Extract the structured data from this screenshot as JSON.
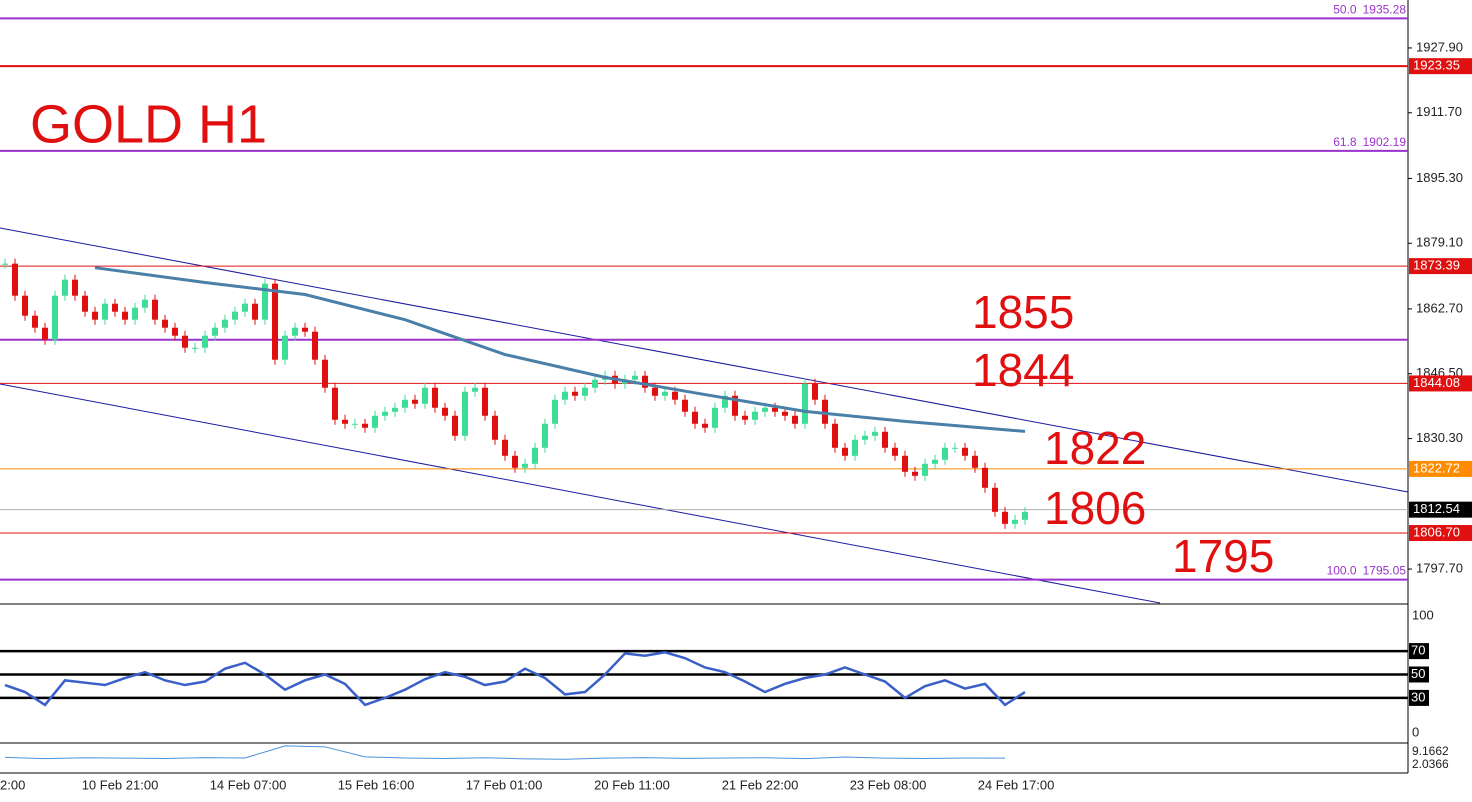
{
  "chart_data": [
    {
      "type": "candlestick",
      "title": "GOLD H1",
      "closes": [
        1874,
        1866,
        1861,
        1858,
        1855,
        1866,
        1870,
        1866,
        1862,
        1860,
        1864,
        1862,
        1860,
        1863,
        1865,
        1860,
        1858,
        1856,
        1853,
        1853,
        1856,
        1858,
        1860,
        1862,
        1864,
        1860,
        1869,
        1850,
        1856,
        1858,
        1857,
        1850,
        1843,
        1835,
        1834,
        1834,
        1833,
        1836,
        1837,
        1838,
        1840,
        1839,
        1843,
        1838,
        1836,
        1831,
        1842,
        1843,
        1836,
        1830,
        1826,
        1823,
        1824,
        1828,
        1834,
        1840,
        1842,
        1841,
        1843,
        1845,
        1846,
        1844,
        1845,
        1846,
        1843,
        1841,
        1842,
        1840,
        1837,
        1834,
        1833,
        1838,
        1841,
        1836,
        1835,
        1837,
        1838,
        1837,
        1836,
        1834,
        1844,
        1840,
        1834,
        1828,
        1826,
        1830,
        1831,
        1832,
        1828,
        1826,
        1822,
        1821,
        1824,
        1825,
        1828,
        1828,
        1826,
        1823,
        1818,
        1812,
        1809,
        1810,
        1812
      ],
      "up_color": "#3ddc97",
      "down_color": "#e01010",
      "ma_x": [
        9,
        20,
        30,
        40,
        50,
        60,
        70,
        80,
        90,
        102
      ],
      "ma_values": [
        1873,
        1869.3,
        1866.3,
        1860,
        1851.3,
        1845.6,
        1841.3,
        1837.1,
        1834.6,
        1832.1
      ],
      "ma_color": "#4a7fa8",
      "ylim": [
        1789.22,
        1939.88
      ],
      "yticks": [
        {
          "value": 1927.9,
          "label": "1927.90"
        },
        {
          "value": 1911.7,
          "label": "1911.70"
        },
        {
          "value": 1895.3,
          "label": "1895.30"
        },
        {
          "value": 1879.1,
          "label": "1879.10"
        },
        {
          "value": 1862.7,
          "label": "1862.70"
        },
        {
          "value": 1846.5,
          "label": "1846.50"
        },
        {
          "value": 1830.3,
          "label": "1830.30"
        },
        {
          "value": 1797.7,
          "label": "1797.70"
        }
      ],
      "levels": [
        {
          "value": 1935.28,
          "fib": "50.0",
          "color": "#9933cc",
          "width": 2
        },
        {
          "value": 1923.35,
          "color": "#e01010",
          "width": 2,
          "box": true
        },
        {
          "value": 1902.19,
          "fib": "61.8",
          "color": "#9933cc",
          "width": 2
        },
        {
          "value": 1873.39,
          "color": "#e01010",
          "width": 1,
          "box": true
        },
        {
          "value": 1855,
          "color": "#9933cc",
          "width": 2
        },
        {
          "value": 1844.08,
          "color": "#e01010",
          "width": 1,
          "box": true
        },
        {
          "value": 1822.72,
          "color": "#ff8c00",
          "width": 1,
          "box": true
        },
        {
          "value": 1812.54,
          "color": "#b0b0b0",
          "box_color": "#000000",
          "width": 1,
          "box": true
        },
        {
          "value": 1806.7,
          "label": "1806.70",
          "color": "#e01010",
          "width": 1,
          "box": true
        },
        {
          "value": 1795.05,
          "fib": "100.0",
          "color": "#9933cc",
          "width": 2
        }
      ],
      "annotations": [
        "1855",
        "1844",
        "1822",
        "1806",
        "1795"
      ]
    },
    {
      "type": "line",
      "name": "rsi",
      "color": "#3a5fc8",
      "values": [
        41,
        35,
        24,
        45,
        43,
        41,
        47,
        52,
        45,
        41,
        44,
        55,
        60,
        50,
        37,
        45,
        50,
        42,
        24,
        30,
        37,
        46,
        52,
        48,
        41,
        44,
        55,
        47,
        33,
        35,
        50,
        68,
        66,
        69,
        64,
        56,
        52,
        44,
        35,
        42,
        47,
        50,
        56,
        50,
        44,
        30,
        40,
        45,
        38,
        42,
        24,
        35
      ],
      "ylim": [
        0,
        100
      ],
      "yticks": [
        100,
        0
      ],
      "levels": [
        70,
        50,
        30
      ]
    },
    {
      "type": "line",
      "name": "indicator",
      "color": "#4a90d9",
      "values": [
        6.2,
        5.5,
        6.0,
        5.8,
        5.6,
        6.1,
        5.9,
        12.5,
        12.0,
        6.5,
        5.9,
        5.6,
        6.0,
        5.4,
        5.2,
        5.8,
        6.1,
        5.7,
        5.9,
        6.0,
        5.5,
        6.4,
        5.8,
        5.6,
        5.9,
        5.8
      ],
      "ylim": [
        -1.8,
        13.0
      ],
      "yticks": [
        9.1662,
        2.0366
      ]
    },
    {
      "type": "axis",
      "labels": [
        "2:00",
        "10 Feb 21:00",
        "14 Feb 07:00",
        "15 Feb 16:00",
        "17 Feb 01:00",
        "20 Feb 11:00",
        "21 Feb 22:00",
        "23 Feb 08:00",
        "24 Feb 17:00"
      ]
    }
  ]
}
